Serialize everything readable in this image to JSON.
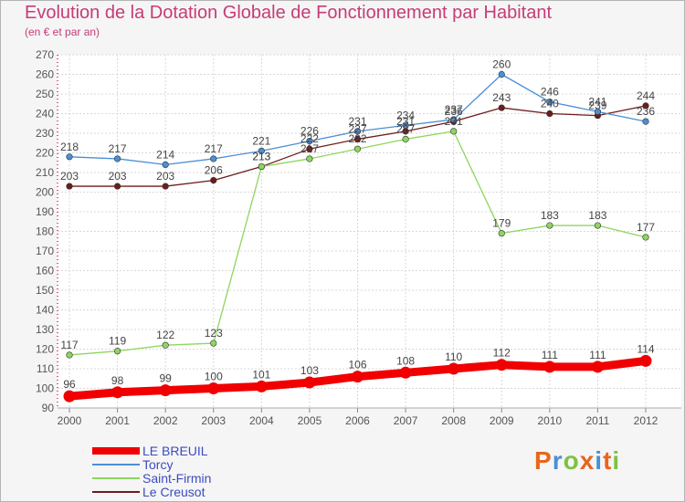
{
  "header": {
    "title": "Evolution de la Dotation Globale de Fonctionnement par Habitant",
    "subtitle": "(en € et par an)"
  },
  "logo": {
    "text": "Proxiti",
    "letters": [
      "P",
      "r",
      "o",
      "x",
      "i",
      "t",
      "i"
    ],
    "colors": [
      "#e8661c",
      "#4a8fd6",
      "#7dc242",
      "#e8661c",
      "#4a8fd6",
      "#e8661c",
      "#7dc242"
    ]
  },
  "chart_data": {
    "type": "line",
    "title": "Evolution de la Dotation Globale de Fonctionnement par Habitant",
    "subtitle": "(en € et par an)",
    "xlabel": "",
    "ylabel": "",
    "x": [
      "2000",
      "2001",
      "2002",
      "2003",
      "2004",
      "2005",
      "2006",
      "2007",
      "2008",
      "2009",
      "2010",
      "2011",
      "2012"
    ],
    "ylim": [
      90,
      270
    ],
    "yticks": [
      90,
      100,
      110,
      120,
      130,
      140,
      150,
      160,
      170,
      180,
      190,
      200,
      210,
      220,
      230,
      240,
      250,
      260,
      270
    ],
    "grid": true,
    "legend_position": "bottom-left",
    "series": [
      {
        "name": "LE BREUIL",
        "color": "#f00000",
        "values": [
          96,
          98,
          99,
          100,
          101,
          103,
          106,
          108,
          110,
          112,
          111,
          111,
          114
        ]
      },
      {
        "name": "Torcy",
        "color": "#4a8fd6",
        "values": [
          218,
          217,
          214,
          217,
          221,
          226,
          231,
          234,
          237,
          260,
          246,
          241,
          236
        ]
      },
      {
        "name": "Saint-Firmin",
        "color": "#8ed65f",
        "values": [
          117,
          119,
          122,
          123,
          213,
          217,
          222,
          227,
          231,
          179,
          183,
          183,
          177
        ]
      },
      {
        "name": "Le Creusot",
        "color": "#6e1c1c",
        "values": [
          203,
          203,
          203,
          206,
          213,
          222,
          227,
          231,
          236,
          243,
          240,
          239,
          244
        ]
      }
    ]
  }
}
